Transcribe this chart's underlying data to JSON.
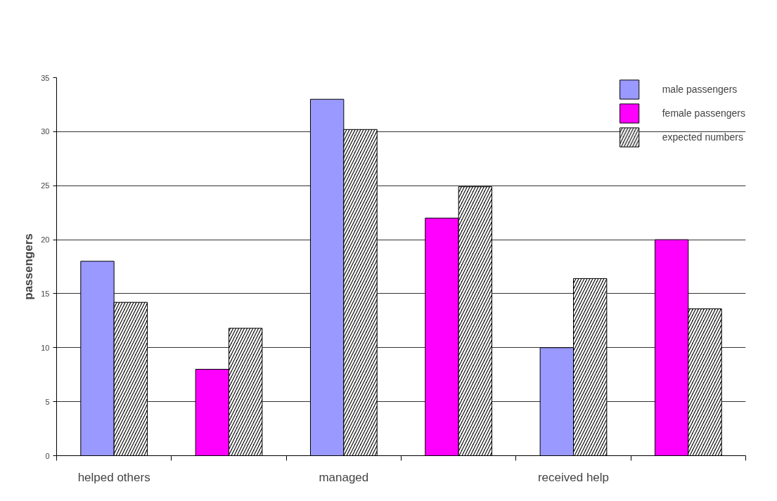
{
  "chart_data": {
    "type": "bar",
    "ylabel": "passengers",
    "categories": [
      "helped others",
      null,
      "managed",
      null,
      "received help",
      null
    ],
    "series": [
      {
        "name": "male passengers",
        "color": "#9999ff",
        "values": [
          18,
          null,
          33,
          null,
          10,
          null
        ]
      },
      {
        "name": "female passengers",
        "color": "#ff00ff",
        "values": [
          null,
          8,
          null,
          22,
          null,
          20
        ]
      },
      {
        "name": "expected numbers",
        "color": "#000000",
        "values": [
          14.2,
          11.8,
          30.2,
          24.9,
          16.4,
          13.6
        ]
      }
    ],
    "ylim": [
      0,
      35
    ],
    "yticks": [
      0,
      5,
      10,
      15,
      20,
      25,
      30,
      35
    ],
    "grid": "y",
    "legend": "top right"
  }
}
